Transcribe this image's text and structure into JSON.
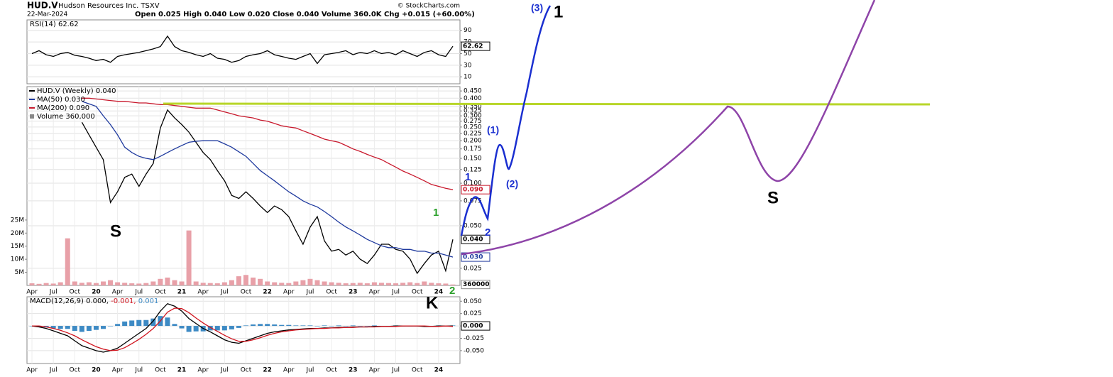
{
  "header": {
    "symbol": "HUD.V",
    "name": "Hudson Resources Inc. TSXV",
    "date": "22-Mar-2024",
    "quote": "Open 0.025 High 0.040 Low 0.020 Close 0.040 Volume 360.0K Chg +0.015 (+60.00%)",
    "credit": "© StockCharts.com"
  },
  "annotations": [
    "S",
    "S",
    "K",
    "1",
    "2",
    "1",
    "2",
    "(1)",
    "(2)",
    "(3)",
    "1"
  ],
  "chart_data": [
    {
      "type": "line",
      "title": "RSI(14) 62.62",
      "ylim": [
        -2,
        108
      ],
      "yticks": [
        10,
        30,
        50,
        70,
        90
      ],
      "grid": true,
      "series": [
        {
          "color": "#000000",
          "last_label": "62.62",
          "values": [
            50,
            55,
            48,
            45,
            50,
            52,
            47,
            45,
            42,
            38,
            40,
            35,
            45,
            48,
            50,
            52,
            55,
            58,
            62,
            80,
            62,
            55,
            52,
            48,
            45,
            50,
            42,
            40,
            35,
            38,
            45,
            48,
            50,
            55,
            48,
            45,
            42,
            40,
            45,
            50,
            33,
            48,
            50,
            52,
            55,
            48,
            52,
            50,
            55,
            50,
            52,
            48,
            55,
            50,
            45,
            52,
            55,
            48,
            45,
            62.62
          ]
        }
      ]
    },
    {
      "type": "line",
      "log_scale": true,
      "ylim": [
        0.0189,
        0.483
      ],
      "grid": true,
      "yticks": [
        {
          "value": 0.45,
          "label": "0.450"
        },
        {
          "value": 0.4,
          "label": "0.400"
        },
        {
          "value": 0.35,
          "label": "0.350"
        },
        0.325,
        {
          "value": 0.3,
          "label": "0.300"
        },
        0.275,
        {
          "value": 0.25,
          "label": "0.250"
        },
        0.225,
        {
          "value": 0.2,
          "label": "0.200"
        },
        0.175,
        {
          "value": 0.15,
          "label": "0.150"
        },
        0.125,
        {
          "value": 0.1,
          "label": "0.100"
        },
        0.075,
        {
          "value": 0.05,
          "label": "0.050"
        },
        0.025
      ],
      "y2lim": [
        0,
        76000000
      ],
      "y2ticks": [
        {
          "value": 5000000,
          "label": "5M"
        },
        {
          "value": 10000000,
          "label": "10M"
        },
        {
          "value": 15000000,
          "label": "15M"
        },
        {
          "value": 20000000,
          "label": "20M"
        },
        {
          "value": 25000000,
          "label": "25M"
        }
      ],
      "categories": [
        "Apr",
        null,
        null,
        "Jul",
        null,
        null,
        "Oct",
        null,
        null,
        "20",
        null,
        null,
        "Apr",
        null,
        null,
        "Jul",
        null,
        null,
        "Oct",
        null,
        null,
        "21",
        null,
        null,
        "Apr",
        null,
        null,
        "Jul",
        null,
        null,
        "Oct",
        null,
        null,
        "22",
        null,
        null,
        "Apr",
        null,
        null,
        "Jul",
        null,
        null,
        "Oct",
        null,
        null,
        "23",
        null,
        null,
        "Apr",
        null,
        null,
        "Jul",
        null,
        null,
        "Oct",
        null,
        null,
        "24",
        null,
        null
      ],
      "series": [
        {
          "name": "HUD.V (Weekly) 0.040",
          "color": "#000000",
          "last_label": "0.040",
          "values": [
            null,
            null,
            null,
            null,
            null,
            null,
            null,
            0.27,
            0.22,
            0.18,
            0.147,
            0.073,
            0.087,
            0.11,
            0.116,
            0.095,
            0.116,
            0.138,
            0.246,
            0.33,
            0.29,
            0.26,
            0.23,
            0.195,
            0.165,
            0.147,
            0.123,
            0.104,
            0.082,
            0.078,
            0.087,
            0.078,
            0.069,
            0.062,
            0.069,
            0.065,
            0.058,
            0.046,
            0.037,
            0.049,
            0.058,
            0.039,
            0.033,
            0.034,
            0.031,
            0.033,
            0.029,
            0.027,
            0.031,
            0.037,
            0.037,
            0.034,
            0.033,
            0.029,
            0.023,
            0.027,
            0.031,
            0.033,
            0.024,
            0.04
          ]
        },
        {
          "name": "MA(50) 0.030",
          "color": "#1f3a9e",
          "last_label": "0.030",
          "values": [
            null,
            null,
            null,
            null,
            null,
            null,
            null,
            0.38,
            0.365,
            0.35,
            0.3,
            0.26,
            0.22,
            0.18,
            0.165,
            0.155,
            0.15,
            0.147,
            0.155,
            0.165,
            0.175,
            0.185,
            0.195,
            0.198,
            0.2,
            0.2,
            0.2,
            0.19,
            0.18,
            0.167,
            0.155,
            0.138,
            0.123,
            0.113,
            0.104,
            0.095,
            0.087,
            0.081,
            0.075,
            0.071,
            0.068,
            0.063,
            0.058,
            0.053,
            0.049,
            0.046,
            0.043,
            0.04,
            0.038,
            0.036,
            0.035,
            0.035,
            0.034,
            0.034,
            0.033,
            0.033,
            0.032,
            0.032,
            0.031,
            0.03
          ]
        },
        {
          "name": "MA(200) 0.090",
          "color": "#c8182c",
          "last_label": "0.090",
          "values": [
            null,
            null,
            null,
            null,
            null,
            null,
            null,
            0.4,
            0.4,
            0.395,
            0.39,
            0.385,
            0.38,
            0.38,
            0.375,
            0.37,
            0.37,
            0.365,
            0.36,
            0.36,
            0.355,
            0.35,
            0.345,
            0.34,
            0.34,
            0.34,
            0.33,
            0.32,
            0.31,
            0.3,
            0.295,
            0.29,
            0.28,
            0.275,
            0.265,
            0.255,
            0.25,
            0.246,
            0.235,
            0.225,
            0.215,
            0.205,
            0.2,
            0.195,
            0.185,
            0.175,
            0.168,
            0.16,
            0.153,
            0.147,
            0.138,
            0.13,
            0.122,
            0.116,
            0.11,
            0.104,
            0.098,
            0.095,
            0.092,
            0.09
          ]
        },
        {
          "name": "Volume 360,000",
          "type": "bar",
          "axis": "y2",
          "color": "#e8a0a8",
          "last_label": "360000",
          "values": [
            800000,
            600000,
            900000,
            700000,
            1200000,
            18000000,
            1500000,
            1000000,
            1200000,
            900000,
            1500000,
            2000000,
            1200000,
            1000000,
            800000,
            700000,
            900000,
            1500000,
            2500000,
            3000000,
            2000000,
            1500000,
            21000000,
            1500000,
            1000000,
            900000,
            800000,
            1200000,
            2000000,
            3500000,
            4000000,
            3000000,
            2500000,
            1500000,
            1200000,
            1000000,
            900000,
            1500000,
            2000000,
            2500000,
            2000000,
            1500000,
            1200000,
            1000000,
            800000,
            900000,
            1000000,
            800000,
            1200000,
            1000000,
            900000,
            800000,
            1000000,
            1200000,
            900000,
            1500000,
            1000000,
            800000,
            700000,
            360000
          ]
        }
      ]
    },
    {
      "type": "line",
      "title": "MACD(12,26,9)",
      "legend": "inline",
      "ylim": [
        -0.076,
        0.059
      ],
      "grid": true,
      "yticks": [
        {
          "value": 0.05,
          "label": "0.050"
        },
        0.025,
        {
          "value": 0,
          "label": "0.000"
        },
        -0.025,
        {
          "value": -0.05,
          "label": "-0.050"
        }
      ],
      "categories": [
        "Apr",
        null,
        null,
        "Jul",
        null,
        null,
        "Oct",
        null,
        null,
        "20",
        null,
        null,
        "Apr",
        null,
        null,
        "Jul",
        null,
        null,
        "Oct",
        null,
        null,
        "21",
        null,
        null,
        "Apr",
        null,
        null,
        "Jul",
        null,
        null,
        "Oct",
        null,
        null,
        "22",
        null,
        null,
        "Apr",
        null,
        null,
        "Jul",
        null,
        null,
        "Oct",
        null,
        null,
        "23",
        null,
        null,
        "Apr",
        null,
        null,
        "Jul",
        null,
        null,
        "Oct",
        null,
        null,
        "24",
        null,
        null
      ],
      "series": [
        {
          "name": "0.000,",
          "color": "#000000",
          "last_label": "0.000",
          "values": [
            0,
            -0.002,
            -0.005,
            -0.01,
            -0.015,
            -0.02,
            -0.03,
            -0.04,
            -0.045,
            -0.05,
            -0.053,
            -0.05,
            -0.045,
            -0.035,
            -0.025,
            -0.015,
            -0.005,
            0.01,
            0.03,
            0.045,
            0.04,
            0.03,
            0.015,
            0.005,
            -0.005,
            -0.012,
            -0.02,
            -0.028,
            -0.033,
            -0.035,
            -0.03,
            -0.025,
            -0.02,
            -0.015,
            -0.012,
            -0.01,
            -0.008,
            -0.007,
            -0.006,
            -0.005,
            -0.005,
            -0.004,
            -0.004,
            -0.003,
            -0.003,
            -0.002,
            -0.002,
            -0.002,
            -0.001,
            -0.001,
            -0.001,
            0,
            0,
            0,
            0,
            -0.001,
            -0.001,
            0,
            0,
            0
          ]
        },
        {
          "name": "-0.001,",
          "color": "#d0141e",
          "values": [
            0,
            0,
            -0.002,
            -0.005,
            -0.009,
            -0.014,
            -0.02,
            -0.028,
            -0.035,
            -0.042,
            -0.047,
            -0.05,
            -0.049,
            -0.044,
            -0.036,
            -0.027,
            -0.017,
            -0.005,
            0.01,
            0.028,
            0.036,
            0.035,
            0.027,
            0.016,
            0.006,
            -0.003,
            -0.011,
            -0.019,
            -0.026,
            -0.031,
            -0.031,
            -0.028,
            -0.024,
            -0.019,
            -0.015,
            -0.012,
            -0.01,
            -0.008,
            -0.007,
            -0.006,
            -0.005,
            -0.005,
            -0.004,
            -0.004,
            -0.003,
            -0.003,
            -0.002,
            -0.002,
            -0.002,
            -0.001,
            -0.001,
            -0.001,
            0,
            0,
            0,
            0,
            -0.001,
            -0.001,
            0,
            -0.001
          ]
        },
        {
          "name": "0.001",
          "type": "bar",
          "color": "#3d8ac4",
          "values": [
            0,
            -0.002,
            -0.003,
            -0.005,
            -0.006,
            -0.006,
            -0.01,
            -0.012,
            -0.01,
            -0.008,
            -0.006,
            0,
            0.004,
            0.009,
            0.011,
            0.012,
            0.012,
            0.015,
            0.02,
            0.017,
            0.004,
            -0.005,
            -0.012,
            -0.011,
            -0.011,
            -0.009,
            -0.009,
            -0.009,
            -0.007,
            -0.004,
            0.001,
            0.003,
            0.004,
            0.004,
            0.003,
            0.002,
            0.002,
            0.001,
            0.001,
            0.001,
            0,
            0.001,
            0,
            0.001,
            0,
            0.001,
            0,
            0,
            0.001,
            0,
            0,
            0.001,
            0,
            0,
            0,
            -0.001,
            0,
            0.001,
            0,
            0.001
          ]
        }
      ]
    }
  ]
}
